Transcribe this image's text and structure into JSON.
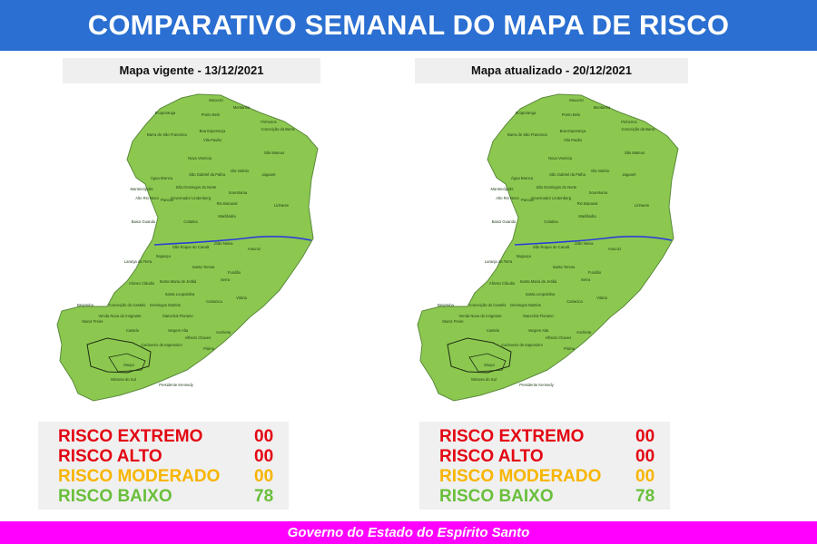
{
  "header": {
    "title": "COMPARATIVO SEMANAL DO MAPA DE RISCO"
  },
  "panels": [
    {
      "title": "Mapa vigente - 13/12/2021",
      "legend": [
        {
          "label": "RISCO EXTREMO",
          "value": "00",
          "color": "#e30613"
        },
        {
          "label": "RISCO ALTO",
          "value": "00",
          "color": "#e30613"
        },
        {
          "label": "RISCO MODERADO",
          "value": "00",
          "color": "#f7b500"
        },
        {
          "label": "RISCO BAIXO",
          "value": "78",
          "color": "#6abf3b"
        }
      ]
    },
    {
      "title": "Mapa atualizado - 20/12/2021",
      "legend": [
        {
          "label": "RISCO EXTREMO",
          "value": "00",
          "color": "#e30613"
        },
        {
          "label": "RISCO ALTO",
          "value": "00",
          "color": "#e30613"
        },
        {
          "label": "RISCO MODERADO",
          "value": "00",
          "color": "#f7b500"
        },
        {
          "label": "RISCO BAIXO",
          "value": "78",
          "color": "#6abf3b"
        }
      ]
    }
  ],
  "map": {
    "fill_color": "#8cc850",
    "border_color": "#5a8a3a",
    "river_color": "#2b3fd6",
    "municipalities": [
      "Mucurici",
      "Montanha",
      "Ecoporanga",
      "Ponto Belo",
      "Pinheiros",
      "Boa Esperança",
      "Conceição da Barra",
      "Barra de São Francisco",
      "Vila Pavão",
      "São Mateus",
      "Nova Venécia",
      "Água Branca",
      "São Gabriel da Palha",
      "Vila Valério",
      "Jaguaré",
      "Mantenópolis",
      "Alto Rio Novo",
      "Pancas",
      "São Domingos do Norte",
      "Sooretama",
      "Governador Lindenberg",
      "Rio Bananal",
      "Linhares",
      "Baixo Guandu",
      "Colatina",
      "Marilândia",
      "São Roque do Canaã",
      "João Neiva",
      "Aracruz",
      "Itaguaçu",
      "Laranja da Terra",
      "Santa Teresa",
      "Fundão",
      "Afonso Cláudio",
      "Santa Maria de Jetibá",
      "Serra",
      "Santa Leopoldina",
      "Vitória",
      "Brejetuba",
      "Conceição do Castelo",
      "Domingos Martins",
      "Cariacica",
      "Muniz Freire",
      "Venda Nova do Imigrante",
      "Marechal Floriano",
      "Castelo",
      "Vargem Alta",
      "Alfredo Chaves",
      "Anchieta",
      "Cachoeiro de Itapemirim",
      "Piúma",
      "Muqui",
      "Mimoso do Sul",
      "Presidente Kennedy"
    ]
  },
  "footer": {
    "text": "Governo do Estado do Espírito Santo"
  }
}
